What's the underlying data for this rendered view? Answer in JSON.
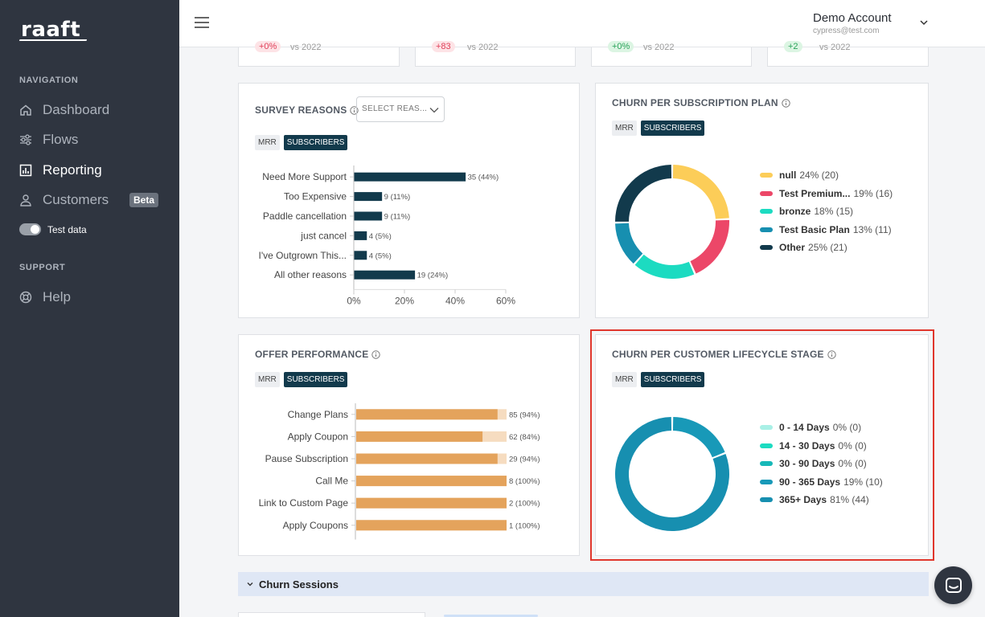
{
  "sidebar": {
    "logo": "raaft",
    "navigation_heading": "NAVIGATION",
    "items": [
      {
        "label": "Dashboard",
        "icon": "home-icon"
      },
      {
        "label": "Flows",
        "icon": "sliders-icon"
      },
      {
        "label": "Reporting",
        "icon": "chart-icon",
        "active": true
      },
      {
        "label": "Customers",
        "icon": "user-icon"
      }
    ],
    "beta_badge": "Beta",
    "test_data_label": "Test data",
    "support_heading": "SUPPORT",
    "help_label": "Help"
  },
  "header": {
    "account_name": "Demo Account",
    "account_email": "cypress@test.com"
  },
  "stats": [
    {
      "pill": "+0%",
      "vs": "vs 2022",
      "tone": "red"
    },
    {
      "pill": "+83",
      "vs": "vs 2022",
      "tone": "red"
    },
    {
      "pill": "+0%",
      "vs": "vs 2022",
      "tone": "green"
    },
    {
      "pill": "+2",
      "vs": "vs 2022",
      "tone": "green"
    }
  ],
  "toggle_labels": {
    "mrr": "MRR",
    "subscribers": "SUBSCRIBERS"
  },
  "survey_reasons": {
    "title": "SURVEY REASONS",
    "select_placeholder": "SELECT REAS..."
  },
  "churn_plan": {
    "title": "CHURN PER SUBSCRIPTION PLAN"
  },
  "offer_performance": {
    "title": "OFFER PERFORMANCE"
  },
  "churn_lifecycle": {
    "title": "CHURN PER CUSTOMER LIFECYCLE STAGE"
  },
  "sessions": {
    "label": "Churn Sessions"
  },
  "chart_data": [
    {
      "type": "bar",
      "orientation": "horizontal",
      "categories": [
        "Need More Support",
        "Too Expensive",
        "Paddle cancellation",
        "just cancel",
        "I've Outgrown This...",
        "All other reasons"
      ],
      "values": [
        44,
        11,
        11,
        5,
        5,
        24
      ],
      "counts": [
        35,
        9,
        9,
        4,
        4,
        19
      ],
      "data_labels": [
        "35 (44%)",
        "9 (11%)",
        "9 (11%)",
        "4 (5%)",
        "4 (5%)",
        "19 (24%)"
      ],
      "xlim": [
        0,
        60
      ],
      "xticks": [
        "0%",
        "20%",
        "40%",
        "60%"
      ],
      "color": "#123a4c"
    },
    {
      "type": "pie",
      "donut": true,
      "labels": [
        "null",
        "Test Premium...",
        "bronze",
        "Test Basic Plan",
        "Other"
      ],
      "values": [
        24,
        19,
        18,
        13,
        25
      ],
      "counts": [
        20,
        16,
        15,
        11,
        21
      ],
      "legend_text": [
        "24% (20)",
        "19% (16)",
        "18% (15)",
        "13% (11)",
        "25% (21)"
      ],
      "colors": [
        "#fccd58",
        "#ec4768",
        "#1cdbc1",
        "#178fb0",
        "#123a4c"
      ],
      "legend": "right"
    },
    {
      "type": "bar",
      "orientation": "horizontal",
      "stacked": true,
      "categories": [
        "Change Plans",
        "Apply Coupon",
        "Pause Subscription",
        "Call Me",
        "Link to Custom Page",
        "Apply Coupons"
      ],
      "values": [
        94,
        84,
        94,
        100,
        100,
        100
      ],
      "counts": [
        85,
        62,
        29,
        8,
        2,
        1
      ],
      "data_labels": [
        "85 (94%)",
        "62 (84%)",
        "29 (94%)",
        "8 (100%)",
        "2 (100%)",
        "1 (100%)"
      ],
      "xlim": [
        0,
        100
      ],
      "colors": [
        "#e4a35c",
        "#f6dcc0"
      ]
    },
    {
      "type": "pie",
      "donut": true,
      "labels": [
        "0 - 14 Days",
        "14 - 30 Days",
        "30 - 90 Days",
        "90 - 365 Days",
        "365+ Days"
      ],
      "values": [
        0,
        0,
        0,
        19,
        81
      ],
      "counts": [
        0,
        0,
        0,
        10,
        44
      ],
      "legend_text": [
        "0% (0)",
        "0% (0)",
        "0% (0)",
        "19% (10)",
        "81% (44)"
      ],
      "colors": [
        "#a9f0e6",
        "#1cdbc1",
        "#17b8b8",
        "#1899b8",
        "#178fb0"
      ],
      "legend": "right"
    }
  ]
}
